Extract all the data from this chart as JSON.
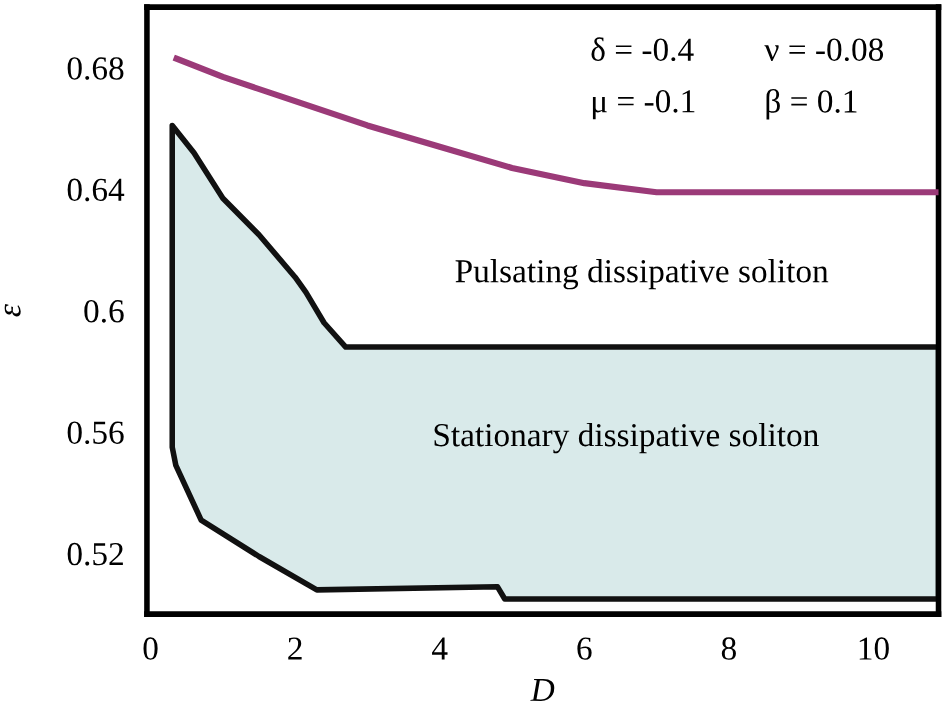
{
  "chart_data": {
    "type": "line",
    "xlabel": "D",
    "ylabel": "ε",
    "xlim": [
      -0.05,
      10.9
    ],
    "ylim": [
      0.5,
      0.7
    ],
    "xticks": [
      0,
      2,
      4,
      6,
      8,
      10
    ],
    "yticks": [
      0.52,
      0.56,
      0.6,
      0.64,
      0.68
    ],
    "grid": false,
    "marker": "none",
    "line_style": "solid",
    "series": [
      {
        "color": "#9b3a78",
        "x": [
          0.36,
          1,
          2,
          3,
          4,
          5,
          6,
          7,
          8,
          9,
          10,
          10.9
        ],
        "values": [
          0.683,
          0.677,
          0.669,
          0.661,
          0.654,
          0.647,
          0.642,
          0.639,
          0.639,
          0.639,
          0.639,
          0.639
        ]
      },
      {
        "type": "area",
        "color": "#d9eaea",
        "x": [
          0.3,
          0.6,
          1.0,
          1.5,
          2.0,
          2.15,
          2.4,
          2.7,
          10.9,
          10.9,
          4.9,
          4.8,
          2.3,
          1.5,
          0.7,
          0.35,
          0.3,
          0.3
        ],
        "values": [
          0.661,
          0.652,
          0.637,
          0.625,
          0.611,
          0.606,
          0.596,
          0.588,
          0.588,
          0.505,
          0.505,
          0.509,
          0.508,
          0.519,
          0.531,
          0.549,
          0.555,
          0.661
        ]
      }
    ],
    "annotations": [
      "δ = -0.4",
      "ν = -0.08",
      "μ = -0.1",
      "β = 0.1",
      "Pulsating dissipative soliton",
      "Stationary dissipative soliton"
    ]
  }
}
